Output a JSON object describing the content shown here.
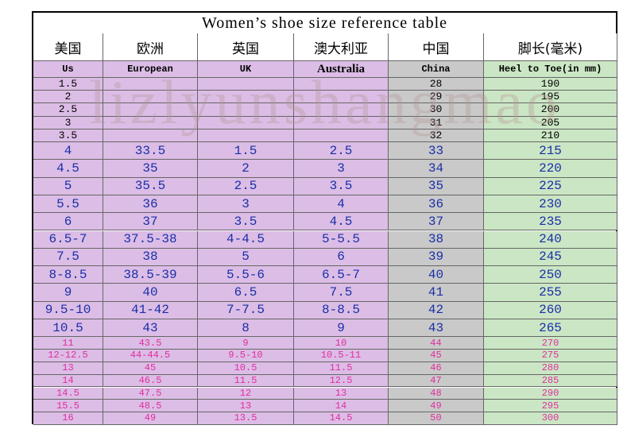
{
  "title": "Women’s shoe size reference table",
  "watermark": "lizlyunshangmao",
  "table": {
    "headers": [
      "美国",
      "欧洲",
      "英国",
      "澳大利亚",
      "中国",
      "脚长(毫米)"
    ],
    "subheaders": [
      "Us",
      "European",
      "UK",
      "Australia",
      "China",
      "Heel to Toe(in mm)"
    ],
    "rows": [
      [
        "1.5",
        null,
        null,
        null,
        "28",
        "190"
      ],
      [
        "2",
        null,
        null,
        null,
        "29",
        "195"
      ],
      [
        "2.5",
        null,
        null,
        null,
        "30",
        "200"
      ],
      [
        "3",
        null,
        null,
        null,
        "31",
        "205"
      ],
      [
        "3.5",
        null,
        null,
        null,
        "32",
        "210"
      ],
      [
        "4",
        "33.5",
        "1.5",
        "2.5",
        "33",
        "215"
      ],
      [
        "4.5",
        "35",
        "2",
        "3",
        "34",
        "220"
      ],
      [
        "5",
        "35.5",
        "2.5",
        "3.5",
        "35",
        "225"
      ],
      [
        "5.5",
        "36",
        "3",
        "4",
        "36",
        "230"
      ],
      [
        "6",
        "37",
        "3.5",
        "4.5",
        "37",
        "235"
      ],
      [
        "6.5-7",
        "37.5-38",
        "4-4.5",
        "5-5.5",
        "38",
        "240"
      ],
      [
        "7.5",
        "38",
        "5",
        "6",
        "39",
        "245"
      ],
      [
        "8-8.5",
        "38.5-39",
        "5.5-6",
        "6.5-7",
        "40",
        "250"
      ],
      [
        "9",
        "40",
        "6.5",
        "7.5",
        "41",
        "255"
      ],
      [
        "9.5-10",
        "41-42",
        "7-7.5",
        "8-8.5",
        "42",
        "260"
      ],
      [
        "10.5",
        "43",
        "8",
        "9",
        "43",
        "265"
      ],
      [
        "11",
        "43.5",
        "9",
        "10",
        "44",
        "270"
      ],
      [
        "12-12.5",
        "44-44.5",
        "9.5-10",
        "10.5-11",
        "45",
        "275"
      ],
      [
        "13",
        "45",
        "10.5",
        "11.5",
        "46",
        "280"
      ],
      [
        "14",
        "46.5",
        "11.5",
        "12.5",
        "47",
        "285"
      ],
      [
        "14.5",
        "47.5",
        "12",
        "13",
        "48",
        "290"
      ],
      [
        "15.5",
        "48.5",
        "13",
        "14",
        "49",
        "295"
      ],
      [
        "16",
        "49",
        "13.5",
        "14.5",
        "50",
        "300"
      ]
    ]
  }
}
